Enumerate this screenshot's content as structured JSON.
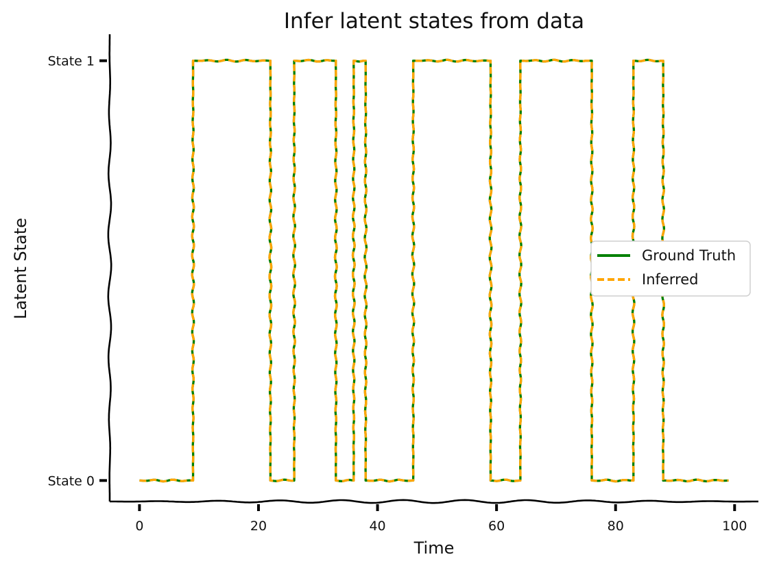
{
  "chart_data": {
    "type": "line",
    "title": "Infer latent states from data",
    "xlabel": "Time",
    "ylabel": "Latent State",
    "xlim": [
      -5,
      104
    ],
    "ylim": [
      1.05,
      -0.05
    ],
    "x_ticks": [
      0,
      20,
      40,
      60,
      80,
      100
    ],
    "y_ticks": [
      0,
      1
    ],
    "y_tick_labels": [
      "State 0",
      "State 1"
    ],
    "grid": false,
    "legend_position": "center-right",
    "style": "xkcd",
    "series": [
      {
        "name": "Ground Truth",
        "color": "#008000",
        "dash": "solid",
        "steps": [
          [
            0,
            0
          ],
          [
            9,
            1
          ],
          [
            22,
            0
          ],
          [
            26,
            1
          ],
          [
            33,
            0
          ],
          [
            36,
            1
          ],
          [
            38,
            0
          ],
          [
            46,
            1
          ],
          [
            59,
            0
          ],
          [
            64,
            1
          ],
          [
            76,
            0
          ],
          [
            83,
            1
          ],
          [
            88,
            0
          ],
          [
            99,
            0
          ]
        ]
      },
      {
        "name": "Inferred",
        "color": "#ffa500",
        "dash": "dashed",
        "steps": [
          [
            0,
            0
          ],
          [
            9,
            1
          ],
          [
            22,
            0
          ],
          [
            26,
            1
          ],
          [
            33,
            0
          ],
          [
            36,
            1
          ],
          [
            38,
            0
          ],
          [
            46,
            1
          ],
          [
            59,
            0
          ],
          [
            64,
            1
          ],
          [
            76,
            0
          ],
          [
            83,
            1
          ],
          [
            88,
            0
          ],
          [
            99,
            0
          ]
        ]
      }
    ]
  }
}
